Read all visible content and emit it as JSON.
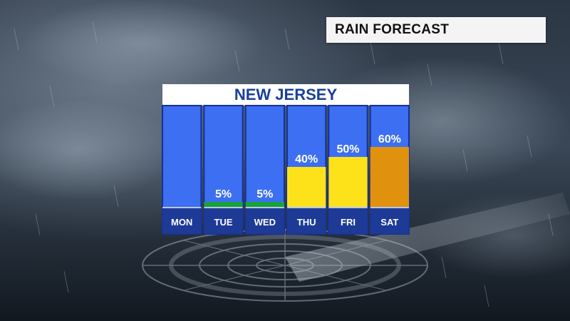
{
  "title": "RAIN FORECAST",
  "colors": {
    "column_fill": "#3c6ff2",
    "column_border": "#16309a",
    "day_label_bg": "#1d3a96",
    "low": "#17a23a",
    "medium": "#fde21a",
    "high": "#e0920e"
  },
  "chart_data": {
    "type": "bar",
    "title": "NEW JERSEY",
    "categories": [
      "MON",
      "TUE",
      "WED",
      "THU",
      "FRI",
      "SAT"
    ],
    "values": [
      null,
      5,
      5,
      40,
      50,
      60
    ],
    "value_labels": [
      "",
      "5%",
      "5%",
      "40%",
      "50%",
      "60%"
    ],
    "bar_colors": [
      "",
      "#17a23a",
      "#17a23a",
      "#fde21a",
      "#fde21a",
      "#e0920e"
    ],
    "ylim": [
      0,
      100
    ],
    "grid": false,
    "legend": "none"
  }
}
